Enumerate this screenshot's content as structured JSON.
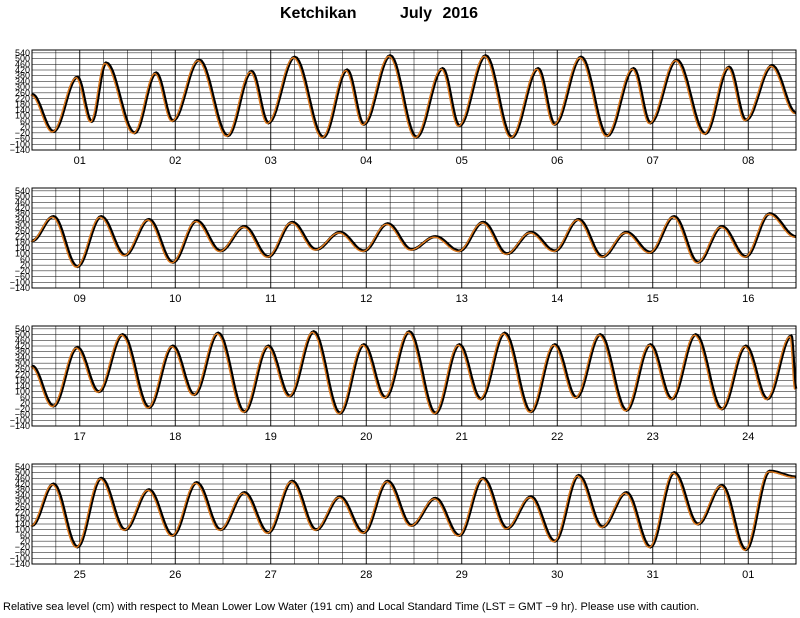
{
  "title": {
    "station": "Ketchikan",
    "month": "July",
    "year": "2016"
  },
  "footer": "Relative sea level (cm) with respect to Mean Lower Low Water (191 cm) and Local Standard Time (LST = GMT −9 hr). Please use with caution.",
  "chart_data": {
    "type": "line",
    "ylim": [
      -140,
      560
    ],
    "y_ticks": [
      -140,
      -100,
      -60,
      -20,
      20,
      60,
      100,
      140,
      180,
      220,
      260,
      300,
      340,
      380,
      420,
      460,
      500,
      540
    ],
    "y_tick_labels": [
      "−140",
      "−100",
      "−60",
      "−20",
      "20",
      "60",
      "100",
      "140",
      "180",
      "220",
      "260",
      "300",
      "340",
      "380",
      "420",
      "460",
      "500",
      "540"
    ],
    "grid": true,
    "series_colors": {
      "observed": "#000000",
      "predicted": "#e07b1f"
    },
    "panels": [
      {
        "days": [
          "01",
          "02",
          "03",
          "04",
          "05",
          "06",
          "07",
          "08"
        ],
        "extremes": [
          [
            0.0,
            250
          ],
          [
            0.45,
            -10
          ],
          [
            0.95,
            370
          ],
          [
            1.25,
            60
          ],
          [
            1.55,
            470
          ],
          [
            2.15,
            -20
          ],
          [
            2.6,
            400
          ],
          [
            2.95,
            65
          ],
          [
            3.5,
            490
          ],
          [
            4.1,
            -40
          ],
          [
            4.6,
            410
          ],
          [
            4.95,
            50
          ],
          [
            5.5,
            510
          ],
          [
            6.1,
            -50
          ],
          [
            6.6,
            420
          ],
          [
            6.95,
            40
          ],
          [
            7.5,
            520
          ],
          [
            8.05,
            -50
          ],
          [
            8.6,
            430
          ],
          [
            8.95,
            30
          ],
          [
            9.5,
            520
          ],
          [
            10.05,
            -50
          ],
          [
            10.6,
            430
          ],
          [
            10.95,
            40
          ],
          [
            11.5,
            510
          ],
          [
            12.05,
            -40
          ],
          [
            12.6,
            430
          ],
          [
            12.95,
            50
          ],
          [
            13.5,
            490
          ],
          [
            14.1,
            -25
          ],
          [
            14.6,
            440
          ],
          [
            14.95,
            70
          ],
          [
            15.5,
            450
          ],
          [
            16.0,
            120
          ]
        ]
      },
      {
        "days": [
          "09",
          "10",
          "11",
          "12",
          "13",
          "14",
          "15",
          "16"
        ],
        "extremes": [
          [
            0.0,
            190
          ],
          [
            0.45,
            360
          ],
          [
            0.95,
            10
          ],
          [
            1.45,
            360
          ],
          [
            1.95,
            90
          ],
          [
            2.45,
            340
          ],
          [
            2.95,
            40
          ],
          [
            3.45,
            330
          ],
          [
            3.95,
            120
          ],
          [
            4.45,
            290
          ],
          [
            4.95,
            80
          ],
          [
            5.45,
            320
          ],
          [
            5.95,
            130
          ],
          [
            6.45,
            250
          ],
          [
            6.95,
            120
          ],
          [
            7.45,
            310
          ],
          [
            7.95,
            130
          ],
          [
            8.45,
            220
          ],
          [
            8.95,
            120
          ],
          [
            9.45,
            320
          ],
          [
            9.95,
            100
          ],
          [
            10.45,
            250
          ],
          [
            10.95,
            120
          ],
          [
            11.45,
            340
          ],
          [
            11.95,
            80
          ],
          [
            12.45,
            250
          ],
          [
            12.95,
            110
          ],
          [
            13.45,
            360
          ],
          [
            13.95,
            40
          ],
          [
            14.45,
            290
          ],
          [
            14.95,
            80
          ],
          [
            15.45,
            380
          ],
          [
            16.0,
            220
          ]
        ]
      },
      {
        "days": [
          "17",
          "18",
          "19",
          "20",
          "21",
          "22",
          "23",
          "24"
        ],
        "extremes": [
          [
            0.0,
            280
          ],
          [
            0.45,
            0
          ],
          [
            0.95,
            410
          ],
          [
            1.4,
            100
          ],
          [
            1.9,
            500
          ],
          [
            2.45,
            -10
          ],
          [
            2.95,
            420
          ],
          [
            3.4,
            80
          ],
          [
            3.9,
            510
          ],
          [
            4.45,
            -40
          ],
          [
            4.95,
            420
          ],
          [
            5.4,
            70
          ],
          [
            5.9,
            520
          ],
          [
            6.45,
            -50
          ],
          [
            6.95,
            430
          ],
          [
            7.4,
            60
          ],
          [
            7.9,
            520
          ],
          [
            8.45,
            -50
          ],
          [
            8.95,
            430
          ],
          [
            9.4,
            50
          ],
          [
            9.9,
            510
          ],
          [
            10.45,
            -40
          ],
          [
            10.95,
            430
          ],
          [
            11.4,
            60
          ],
          [
            11.9,
            500
          ],
          [
            12.45,
            -30
          ],
          [
            12.95,
            430
          ],
          [
            13.4,
            50
          ],
          [
            13.9,
            500
          ],
          [
            14.45,
            -20
          ],
          [
            14.95,
            420
          ],
          [
            15.4,
            50
          ],
          [
            15.9,
            490
          ],
          [
            16.0,
            120
          ]
        ]
      },
      {
        "days": [
          "25",
          "26",
          "27",
          "28",
          "29",
          "30",
          "31",
          "01"
        ],
        "extremes": [
          [
            0.0,
            130
          ],
          [
            0.45,
            420
          ],
          [
            0.95,
            -20
          ],
          [
            1.45,
            460
          ],
          [
            1.95,
            100
          ],
          [
            2.45,
            380
          ],
          [
            2.95,
            60
          ],
          [
            3.45,
            430
          ],
          [
            3.95,
            100
          ],
          [
            4.45,
            360
          ],
          [
            4.95,
            80
          ],
          [
            5.45,
            440
          ],
          [
            5.95,
            100
          ],
          [
            6.45,
            330
          ],
          [
            6.95,
            80
          ],
          [
            7.45,
            440
          ],
          [
            7.95,
            130
          ],
          [
            8.45,
            320
          ],
          [
            8.95,
            60
          ],
          [
            9.45,
            460
          ],
          [
            9.95,
            110
          ],
          [
            10.45,
            330
          ],
          [
            10.95,
            20
          ],
          [
            11.45,
            480
          ],
          [
            11.95,
            120
          ],
          [
            12.45,
            360
          ],
          [
            12.95,
            -20
          ],
          [
            13.45,
            500
          ],
          [
            13.95,
            140
          ],
          [
            14.45,
            410
          ],
          [
            14.95,
            -40
          ],
          [
            15.45,
            510
          ],
          [
            16.0,
            470
          ]
        ]
      }
    ]
  }
}
